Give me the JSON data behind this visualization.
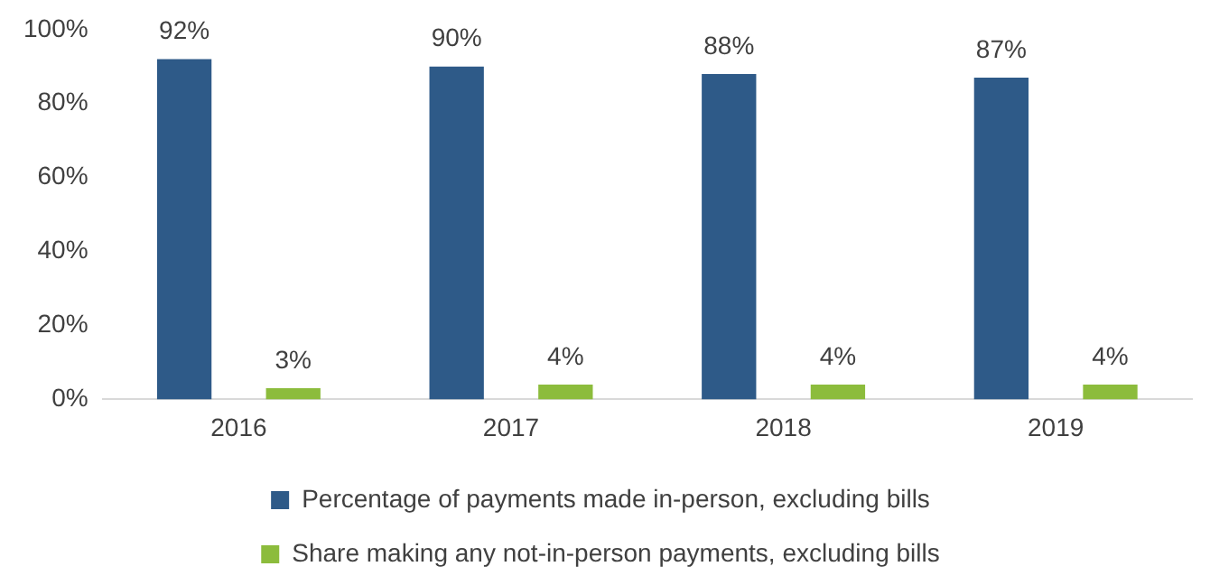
{
  "chart_data": {
    "type": "bar",
    "categories": [
      "2016",
      "2017",
      "2018",
      "2019"
    ],
    "series": [
      {
        "name": "Percentage of payments made in-person, excluding bills",
        "color": "#2e5a88",
        "values": [
          92,
          90,
          88,
          87
        ],
        "value_labels": [
          "92%",
          "90%",
          "88%",
          "87%"
        ]
      },
      {
        "name": "Share making any not-in-person payments, excluding bills",
        "color": "#8cbc3c",
        "values": [
          3,
          4,
          4,
          4
        ],
        "value_labels": [
          "3%",
          "4%",
          "4%",
          "4%"
        ]
      }
    ],
    "ylim": [
      0,
      100
    ],
    "yticks": [
      {
        "value": 0,
        "label": "0%"
      },
      {
        "value": 20,
        "label": "20%"
      },
      {
        "value": 40,
        "label": "40%"
      },
      {
        "value": 60,
        "label": "60%"
      },
      {
        "value": 80,
        "label": "80%"
      },
      {
        "value": 100,
        "label": "100%"
      }
    ],
    "grid": false,
    "legend": "bottom"
  }
}
